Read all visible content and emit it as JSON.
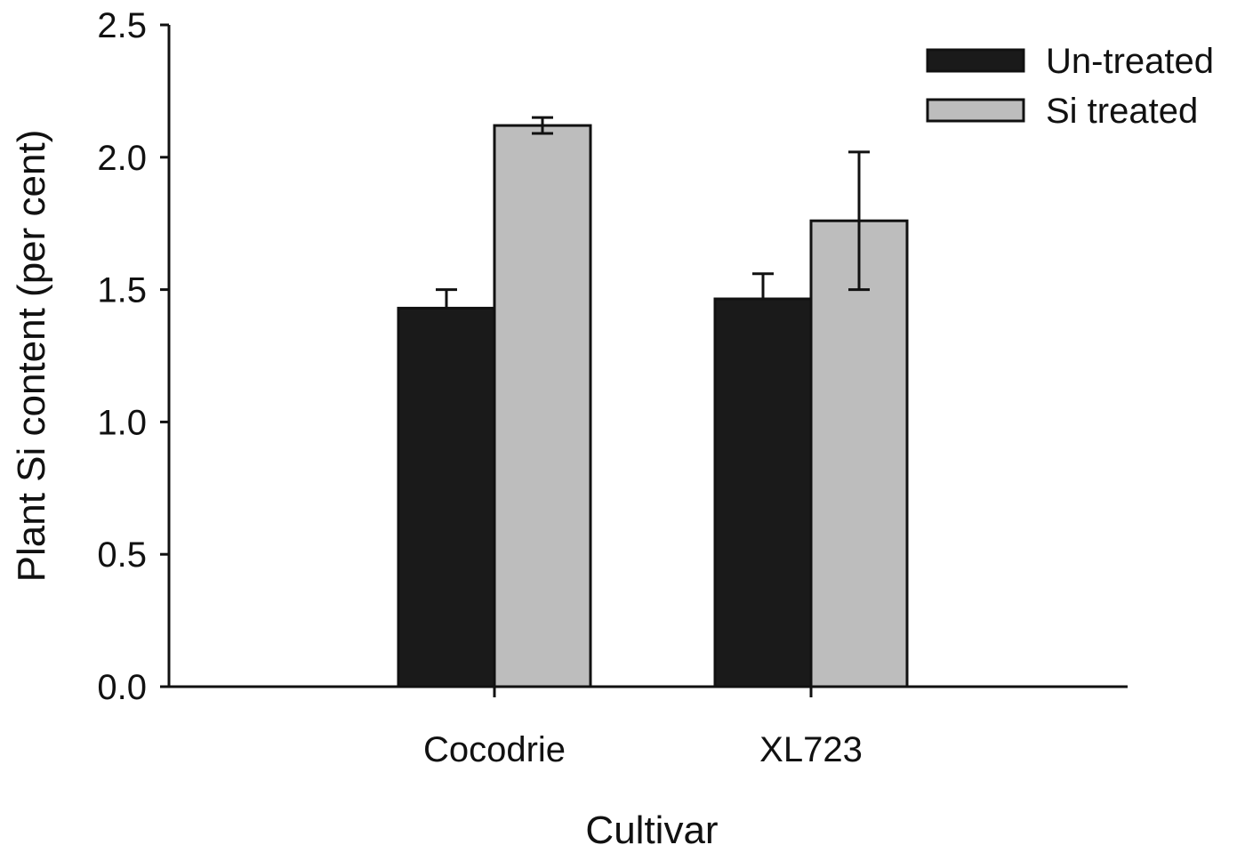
{
  "chart_data": {
    "type": "bar",
    "title": "",
    "xlabel": "Cultivar",
    "ylabel": "Plant Si content (per cent)",
    "ylim": [
      0,
      2.5
    ],
    "yticks": [
      "0.0",
      "0.5",
      "1.0",
      "1.5",
      "2.0",
      "2.5"
    ],
    "categories": [
      "Cocodrie",
      "XL723"
    ],
    "series": [
      {
        "name": "Un-treated",
        "color": "#1a1a1a",
        "values": [
          1.43,
          1.465
        ],
        "error": [
          0.07,
          0.095
        ]
      },
      {
        "name": "Si treated",
        "color": "#bdbdbd",
        "values": [
          2.12,
          1.76
        ],
        "error": [
          0.03,
          0.26
        ]
      }
    ],
    "grid": false,
    "legend_position": "top-right"
  }
}
